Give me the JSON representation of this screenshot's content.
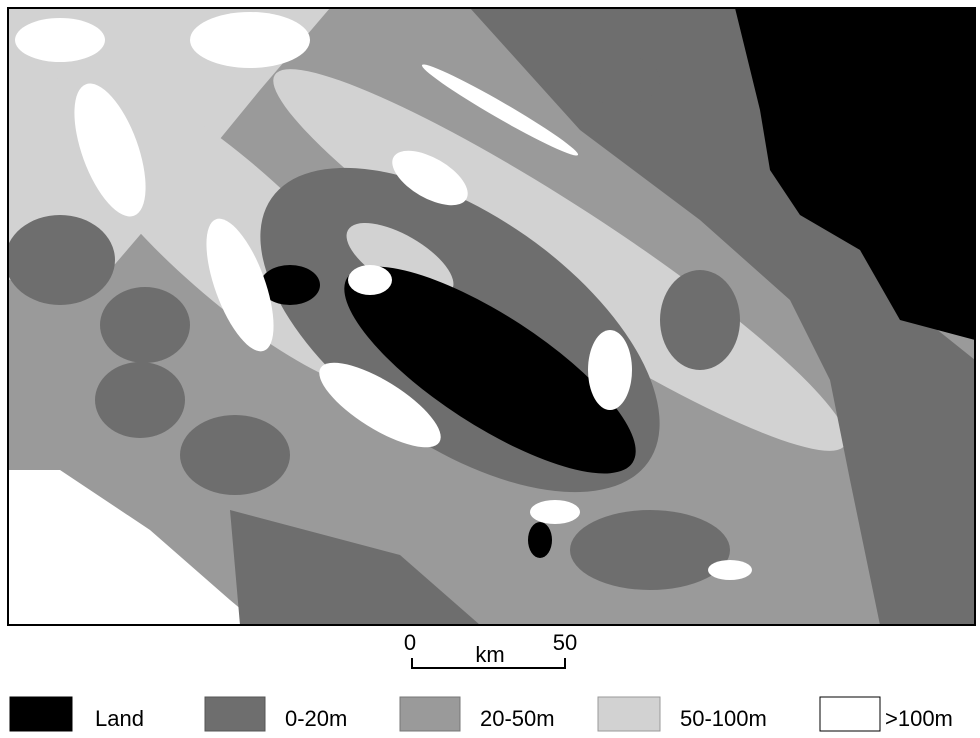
{
  "scale_bar": {
    "start": "0",
    "unit": "km",
    "end": "50"
  },
  "legend": {
    "items": [
      {
        "label": "Land",
        "color": "#000000"
      },
      {
        "label": "0-20m",
        "color": "#6e6e6e"
      },
      {
        "label": "20-50m",
        "color": "#9a9a9a"
      },
      {
        "label": "50-100m",
        "color": "#d2d2d2"
      },
      {
        "label": ">100m",
        "color": "#ffffff"
      }
    ]
  }
}
